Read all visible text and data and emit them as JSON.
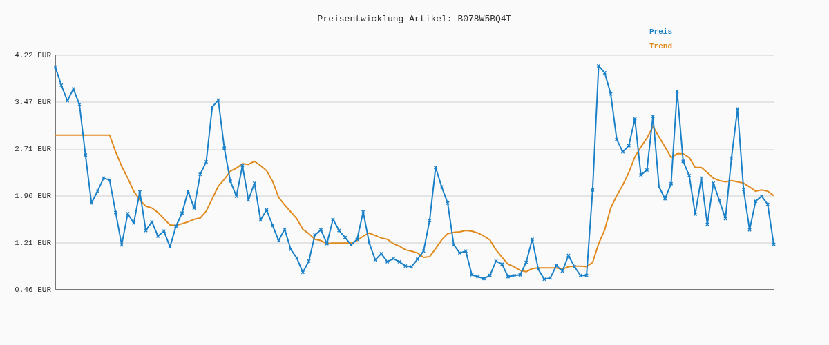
{
  "chart_data": {
    "type": "line",
    "title": "Preisentwicklung Artikel: B078W5BQ4T",
    "categories": [
      null,
      null,
      null,
      null,
      null,
      null,
      null,
      null,
      null,
      null,
      null,
      null,
      null,
      null,
      null,
      null,
      null,
      null,
      null,
      null,
      null,
      null,
      null,
      null,
      null,
      null,
      null,
      null,
      null,
      null,
      null,
      null,
      null,
      null,
      null,
      null,
      null,
      null,
      null,
      null,
      null,
      null,
      null,
      null,
      null,
      null,
      null,
      null,
      null,
      null,
      null,
      null,
      null,
      null,
      null,
      null,
      null,
      null,
      null,
      null,
      null,
      null,
      null,
      null,
      null,
      null,
      null,
      null,
      null,
      null,
      null,
      null,
      null,
      null,
      null,
      null,
      null,
      null,
      null,
      null,
      null,
      null,
      null,
      null,
      null,
      null,
      null,
      null,
      null,
      null,
      null,
      null,
      null,
      null,
      null,
      null,
      null,
      null,
      null,
      null,
      null,
      null,
      null,
      null,
      null,
      null,
      null,
      null,
      null,
      null,
      null,
      null,
      null,
      null,
      null,
      null,
      null,
      null,
      null,
      null
    ],
    "series": [
      {
        "name": "Preis",
        "color": "#1a80c8",
        "marker": "cross",
        "values": [
          4.03,
          3.74,
          3.49,
          3.68,
          3.43,
          2.62,
          1.85,
          2.04,
          2.25,
          2.22,
          1.7,
          1.18,
          1.68,
          1.53,
          2.03,
          1.41,
          1.55,
          1.32,
          1.4,
          1.15,
          1.48,
          1.69,
          2.04,
          1.77,
          2.31,
          2.51,
          3.39,
          3.5,
          2.73,
          2.2,
          1.96,
          2.45,
          1.9,
          2.17,
          1.58,
          1.74,
          1.49,
          1.25,
          1.43,
          1.11,
          0.97,
          0.74,
          0.92,
          1.34,
          1.42,
          1.2,
          1.59,
          1.41,
          1.3,
          1.18,
          1.27,
          1.71,
          1.21,
          0.94,
          1.04,
          0.91,
          0.96,
          0.91,
          0.84,
          0.83,
          0.95,
          1.08,
          1.57,
          2.42,
          2.11,
          1.85,
          1.18,
          1.05,
          1.08,
          0.7,
          0.67,
          0.64,
          0.69,
          0.92,
          0.87,
          0.67,
          0.69,
          0.7,
          0.9,
          1.27,
          0.79,
          0.63,
          0.65,
          0.85,
          0.76,
          1.01,
          0.83,
          0.69,
          0.69,
          2.06,
          4.05,
          3.94,
          3.6,
          2.87,
          2.67,
          2.77,
          3.2,
          2.3,
          2.38,
          3.24,
          2.11,
          1.92,
          2.16,
          3.64,
          2.52,
          2.29,
          1.67,
          2.25,
          1.51,
          2.17,
          1.89,
          1.6,
          2.57,
          3.36,
          2.07,
          1.42,
          1.88,
          1.96,
          1.83,
          1.19
        ]
      },
      {
        "name": "Trend",
        "color": "#e08a1e",
        "marker": "none",
        "values": [
          2.94,
          2.94,
          2.94,
          2.94,
          2.94,
          2.94,
          2.94,
          2.94,
          2.94,
          2.94,
          2.67,
          2.44,
          2.25,
          2.04,
          1.9,
          1.8,
          1.77,
          1.7,
          1.6,
          1.5,
          1.49,
          1.52,
          1.55,
          1.59,
          1.61,
          1.72,
          1.92,
          2.12,
          2.23,
          2.36,
          2.41,
          2.48,
          2.47,
          2.52,
          2.45,
          2.37,
          2.2,
          1.94,
          1.82,
          1.71,
          1.6,
          1.43,
          1.36,
          1.27,
          1.25,
          1.2,
          1.21,
          1.21,
          1.21,
          1.21,
          1.25,
          1.32,
          1.37,
          1.33,
          1.29,
          1.27,
          1.2,
          1.16,
          1.1,
          1.08,
          1.05,
          0.98,
          0.99,
          1.12,
          1.26,
          1.36,
          1.38,
          1.39,
          1.41,
          1.4,
          1.37,
          1.32,
          1.26,
          1.1,
          0.98,
          0.87,
          0.83,
          0.77,
          0.75,
          0.8,
          0.81,
          0.81,
          0.81,
          0.81,
          0.79,
          0.83,
          0.84,
          0.84,
          0.83,
          0.9,
          1.2,
          1.42,
          1.77,
          1.97,
          2.14,
          2.34,
          2.59,
          2.75,
          2.89,
          3.08,
          2.91,
          2.75,
          2.58,
          2.64,
          2.64,
          2.58,
          2.42,
          2.42,
          2.34,
          2.25,
          2.21,
          2.19,
          2.21,
          2.19,
          2.17,
          2.11,
          2.04,
          2.06,
          2.04,
          1.97
        ]
      }
    ],
    "ylim": [
      0.46,
      4.22
    ],
    "yticks": [
      {
        "value": 0.46,
        "label": "0.46 EUR"
      },
      {
        "value": 1.21,
        "label": "1.21 EUR"
      },
      {
        "value": 1.96,
        "label": "1.96 EUR"
      },
      {
        "value": 2.71,
        "label": "2.71 EUR"
      },
      {
        "value": 3.47,
        "label": "3.47 EUR"
      },
      {
        "value": 4.22,
        "label": "4.22 EUR"
      }
    ],
    "tick_labels": "y",
    "grid": "y",
    "legend": "top right"
  }
}
